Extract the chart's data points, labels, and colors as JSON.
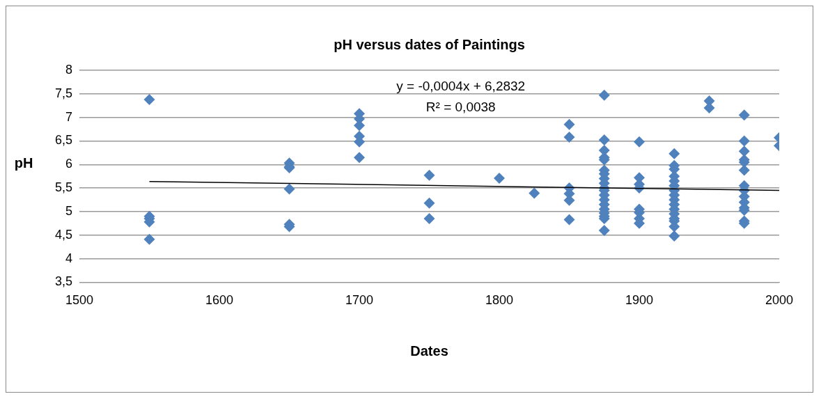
{
  "chart_data": {
    "type": "scatter",
    "title": "pH versus dates of Paintings",
    "xlabel": "Dates",
    "ylabel": "pH",
    "annotations": [
      "y = -0,0004x + 6,2832",
      "R² = 0,0038"
    ],
    "series": [
      {
        "color": "#4f81bd",
        "marker": "diamond",
        "x": [
          1550,
          1550,
          1550,
          1550,
          1550,
          1650,
          1650,
          1650,
          1650,
          1650,
          1650,
          1700,
          1700,
          1700,
          1700,
          1700,
          1700,
          1750,
          1750,
          1750,
          1800,
          1825,
          1850,
          1850,
          1850,
          1850,
          1850,
          1850,
          1875,
          1875,
          1875,
          1875,
          1875,
          1875,
          1875,
          1875,
          1875,
          1875,
          1875,
          1875,
          1875,
          1875,
          1875,
          1875,
          1875,
          1875,
          1875,
          1900,
          1900,
          1900,
          1900,
          1900,
          1900,
          1900,
          1900,
          1925,
          1925,
          1925,
          1925,
          1925,
          1925,
          1925,
          1925,
          1925,
          1925,
          1925,
          1925,
          1925,
          1925,
          1925,
          1925,
          1950,
          1950,
          1975,
          1975,
          1975,
          1975,
          1975,
          1975,
          1975,
          1975,
          1975,
          1975,
          1975,
          1975,
          1975,
          1975,
          2000,
          2000
        ],
        "values": [
          7.38,
          4.9,
          4.85,
          4.78,
          4.41,
          6.03,
          5.95,
          5.93,
          5.48,
          4.73,
          4.68,
          7.08,
          6.97,
          6.83,
          6.6,
          6.48,
          6.15,
          5.77,
          5.18,
          4.85,
          5.71,
          5.39,
          6.85,
          6.58,
          5.5,
          5.38,
          5.24,
          4.83,
          7.47,
          6.52,
          6.3,
          6.15,
          6.1,
          5.88,
          5.8,
          5.7,
          5.6,
          5.5,
          5.45,
          5.35,
          5.25,
          5.15,
          5.05,
          4.97,
          4.9,
          4.85,
          4.6,
          6.48,
          5.72,
          5.58,
          5.5,
          5.05,
          4.98,
          4.85,
          4.75,
          6.23,
          5.98,
          5.9,
          5.75,
          5.65,
          5.55,
          5.45,
          5.35,
          5.25,
          5.15,
          5.05,
          4.95,
          4.85,
          4.8,
          4.68,
          4.48,
          7.35,
          7.2,
          7.05,
          6.5,
          6.28,
          6.1,
          6.05,
          5.88,
          5.55,
          5.45,
          5.32,
          5.2,
          5.08,
          5.03,
          4.8,
          4.75,
          6.57,
          6.4
        ]
      },
      {
        "type": "line",
        "color": "#000000",
        "marker": "none",
        "x": [
          1550,
          2000
        ],
        "values": [
          5.64,
          5.45
        ]
      }
    ],
    "xlim": [
      1500,
      2000
    ],
    "xticks": [
      1500,
      1600,
      1700,
      1800,
      1900,
      2000
    ],
    "ylim": [
      3.5,
      8
    ],
    "yticks": [
      {
        "value": 3.5,
        "label": "3,5"
      },
      4,
      {
        "value": 4.5,
        "label": "4,5"
      },
      5,
      {
        "value": 5.5,
        "label": "5,5"
      },
      6,
      {
        "value": 6.5,
        "label": "6,5"
      },
      7,
      {
        "value": 7.5,
        "label": "7,5"
      },
      8
    ],
    "grid": "y",
    "legend": false
  }
}
